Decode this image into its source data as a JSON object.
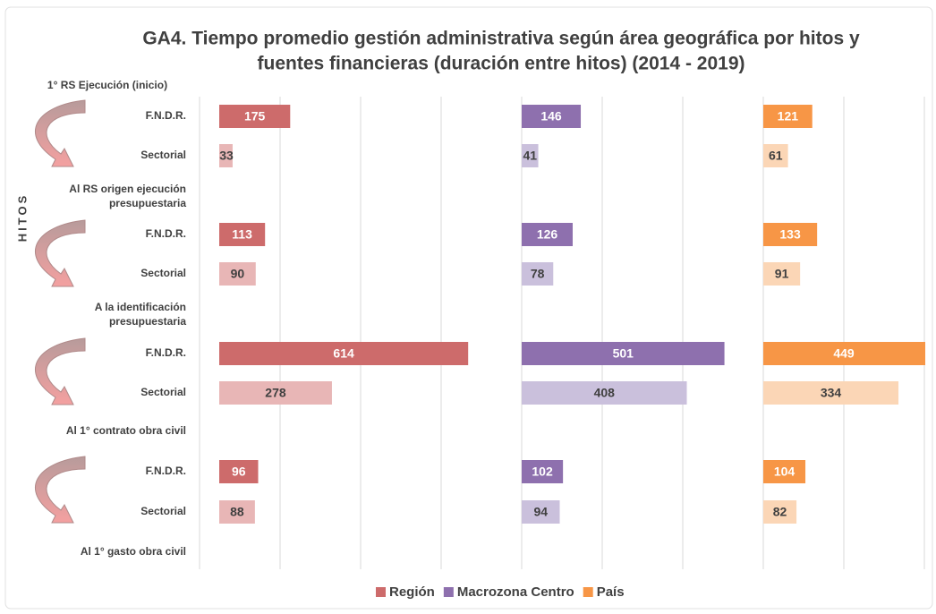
{
  "chart_data": {
    "type": "bar",
    "title": [
      "GA4. Tiempo promedio gestión administrativa según área geográfica por hitos y",
      "fuentes financieras (duración entre hitos) (2014 - 2019)"
    ],
    "y_label": "HITOS",
    "milestones": [
      [
        "1° RS Ejecución (inicio)"
      ],
      [
        "Al RS origen ejecución",
        "presupuestaria"
      ],
      [
        "A la identificación",
        "presupuestaria"
      ],
      [
        "Al 1° contrato obra civil"
      ],
      [
        "Al 1° gasto obra civil"
      ]
    ],
    "categories": [
      "F.N.D.R.",
      "Sectorial",
      "F.N.D.R.",
      "Sectorial",
      "F.N.D.R.",
      "Sectorial",
      "F.N.D.R.",
      "Sectorial"
    ],
    "grid": true,
    "series": [
      {
        "name": "Región",
        "color": "#cd6b6b",
        "light_color": "#e8b6b6",
        "xlim": [
          0,
          746
        ],
        "values": [
          175,
          33,
          113,
          90,
          614,
          278,
          96,
          88
        ]
      },
      {
        "name": "Macrozona Centro",
        "color": "#8e70ae",
        "light_color": "#cac0dc",
        "xlim": [
          0,
          597
        ],
        "values": [
          146,
          41,
          126,
          78,
          501,
          408,
          102,
          94
        ]
      },
      {
        "name": "País",
        "color": "#f79646",
        "light_color": "#fbd6b6",
        "xlim": [
          0,
          398
        ],
        "values": [
          121,
          61,
          133,
          91,
          449,
          334,
          104,
          82
        ]
      }
    ]
  }
}
